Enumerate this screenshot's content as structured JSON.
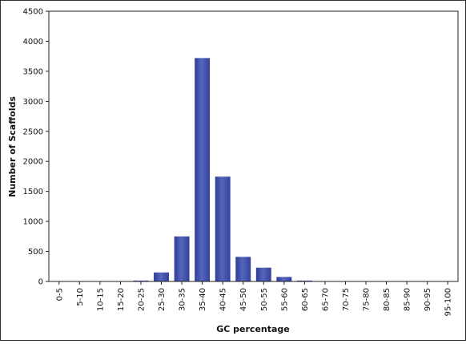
{
  "chart_data": {
    "type": "bar",
    "title": "",
    "xlabel": "GC percentage",
    "ylabel": "Number of Scaffolds",
    "categories": [
      "0-5",
      "5-10",
      "10-15",
      "15-20",
      "20-25",
      "25-30",
      "30-35",
      "35-40",
      "40-45",
      "45-50",
      "50-55",
      "55-60",
      "60-65",
      "65-70",
      "70-75",
      "75-80",
      "80-85",
      "85-90",
      "90-95",
      "95-100"
    ],
    "values": [
      0,
      0,
      0,
      2,
      15,
      150,
      750,
      3720,
      1745,
      410,
      230,
      75,
      15,
      5,
      2,
      0,
      0,
      0,
      0,
      0
    ],
    "ylim": [
      0,
      4500
    ],
    "yticks": [
      0,
      500,
      1000,
      1500,
      2000,
      2500,
      3000,
      3500,
      4000,
      4500
    ],
    "grid": false,
    "legend": "none",
    "bar_color": "#3f4fa8"
  }
}
